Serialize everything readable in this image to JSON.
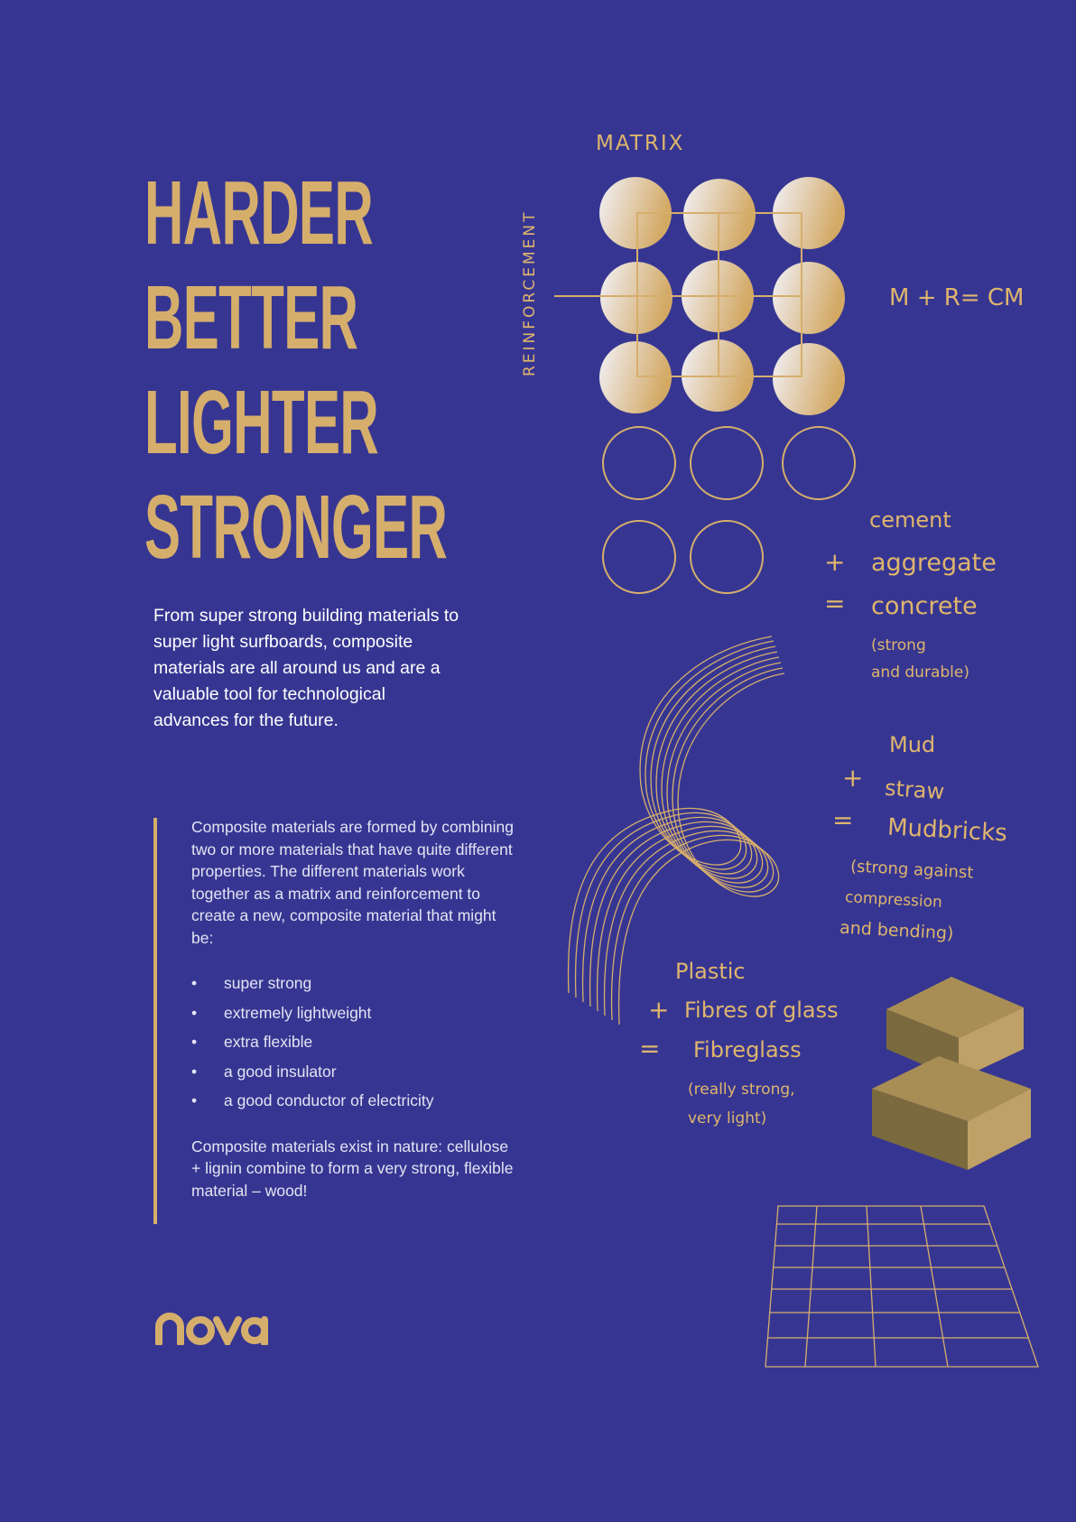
{
  "headline": [
    "HARDER",
    "BETTER",
    "LIGHTER",
    "STRONGER"
  ],
  "intro": "From super strong building materials to super light surfboards, composite materials are all around us and are a valuable tool for technological advances for the future.",
  "body": {
    "paragraph1": "Composite materials are formed by combining two or more materials that have quite different properties. The different materials work together as a matrix and reinforcement to create a new, composite material that might be:",
    "bullets": [
      "super strong",
      "extremely lightweight",
      "extra flexible",
      "a good insulator",
      "a good conductor of electricity"
    ],
    "paragraph2": "Composite materials exist in nature: cellulose + lignin combine to form a very strong, flexible material – wood!"
  },
  "logo": "nova",
  "diagram": {
    "matrix_label": "MATRIX",
    "reinforcement_label": "REINFORCEMENT",
    "formula": "M + R= CM"
  },
  "examples": [
    {
      "plus": "+",
      "equals": "=",
      "a": "cement",
      "b": "aggregate",
      "result": "concrete",
      "note1": "(strong",
      "note2": "and durable)"
    },
    {
      "plus": "+",
      "equals": "=",
      "a": "Mud",
      "b": "straw",
      "result": "Mudbricks",
      "note1": "(strong against",
      "note2": "compression",
      "note3": "and bending)"
    },
    {
      "plus": "+",
      "equals": "=",
      "a": "Plastic",
      "b": "Fibres of glass",
      "result": "Fibreglass",
      "note1": "(really strong,",
      "note2": "very light)"
    }
  ],
  "colors": {
    "background": "#363692",
    "gold": "#d6ae6c",
    "text": "#ffffff"
  }
}
